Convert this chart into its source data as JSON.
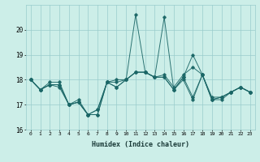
{
  "xlabel": "Humidex (Indice chaleur)",
  "background_color": "#cceee8",
  "grid_color": "#99cccc",
  "line_color": "#1a6666",
  "xlim": [
    -0.5,
    23.5
  ],
  "ylim": [
    16,
    21
  ],
  "yticks": [
    16,
    17,
    18,
    19,
    20
  ],
  "xticks": [
    0,
    1,
    2,
    3,
    4,
    5,
    6,
    7,
    8,
    9,
    10,
    11,
    12,
    13,
    14,
    15,
    16,
    17,
    18,
    19,
    20,
    21,
    22,
    23
  ],
  "series": [
    [
      18.0,
      17.6,
      17.8,
      17.8,
      17.0,
      17.1,
      16.6,
      16.6,
      17.9,
      17.7,
      18.0,
      18.3,
      18.3,
      18.1,
      18.1,
      17.6,
      18.1,
      17.3,
      18.2,
      17.2,
      17.3,
      17.5,
      17.7,
      17.5
    ],
    [
      18.0,
      17.6,
      17.8,
      17.8,
      17.0,
      17.1,
      16.6,
      16.8,
      17.9,
      17.9,
      18.0,
      20.6,
      18.3,
      18.1,
      20.5,
      17.6,
      18.1,
      19.0,
      18.2,
      17.2,
      17.2,
      17.5,
      17.7,
      17.5
    ],
    [
      18.0,
      17.6,
      17.9,
      17.9,
      17.0,
      17.2,
      16.6,
      16.8,
      17.9,
      18.0,
      18.0,
      18.3,
      18.3,
      18.1,
      18.2,
      17.7,
      18.2,
      18.5,
      18.2,
      17.3,
      17.3,
      17.5,
      17.7,
      17.5
    ],
    [
      18.0,
      17.6,
      17.8,
      17.7,
      17.0,
      17.1,
      16.6,
      16.6,
      17.9,
      17.7,
      18.0,
      18.3,
      18.3,
      18.1,
      18.1,
      17.6,
      18.0,
      17.2,
      18.2,
      17.2,
      17.3,
      17.5,
      17.7,
      17.5
    ]
  ]
}
